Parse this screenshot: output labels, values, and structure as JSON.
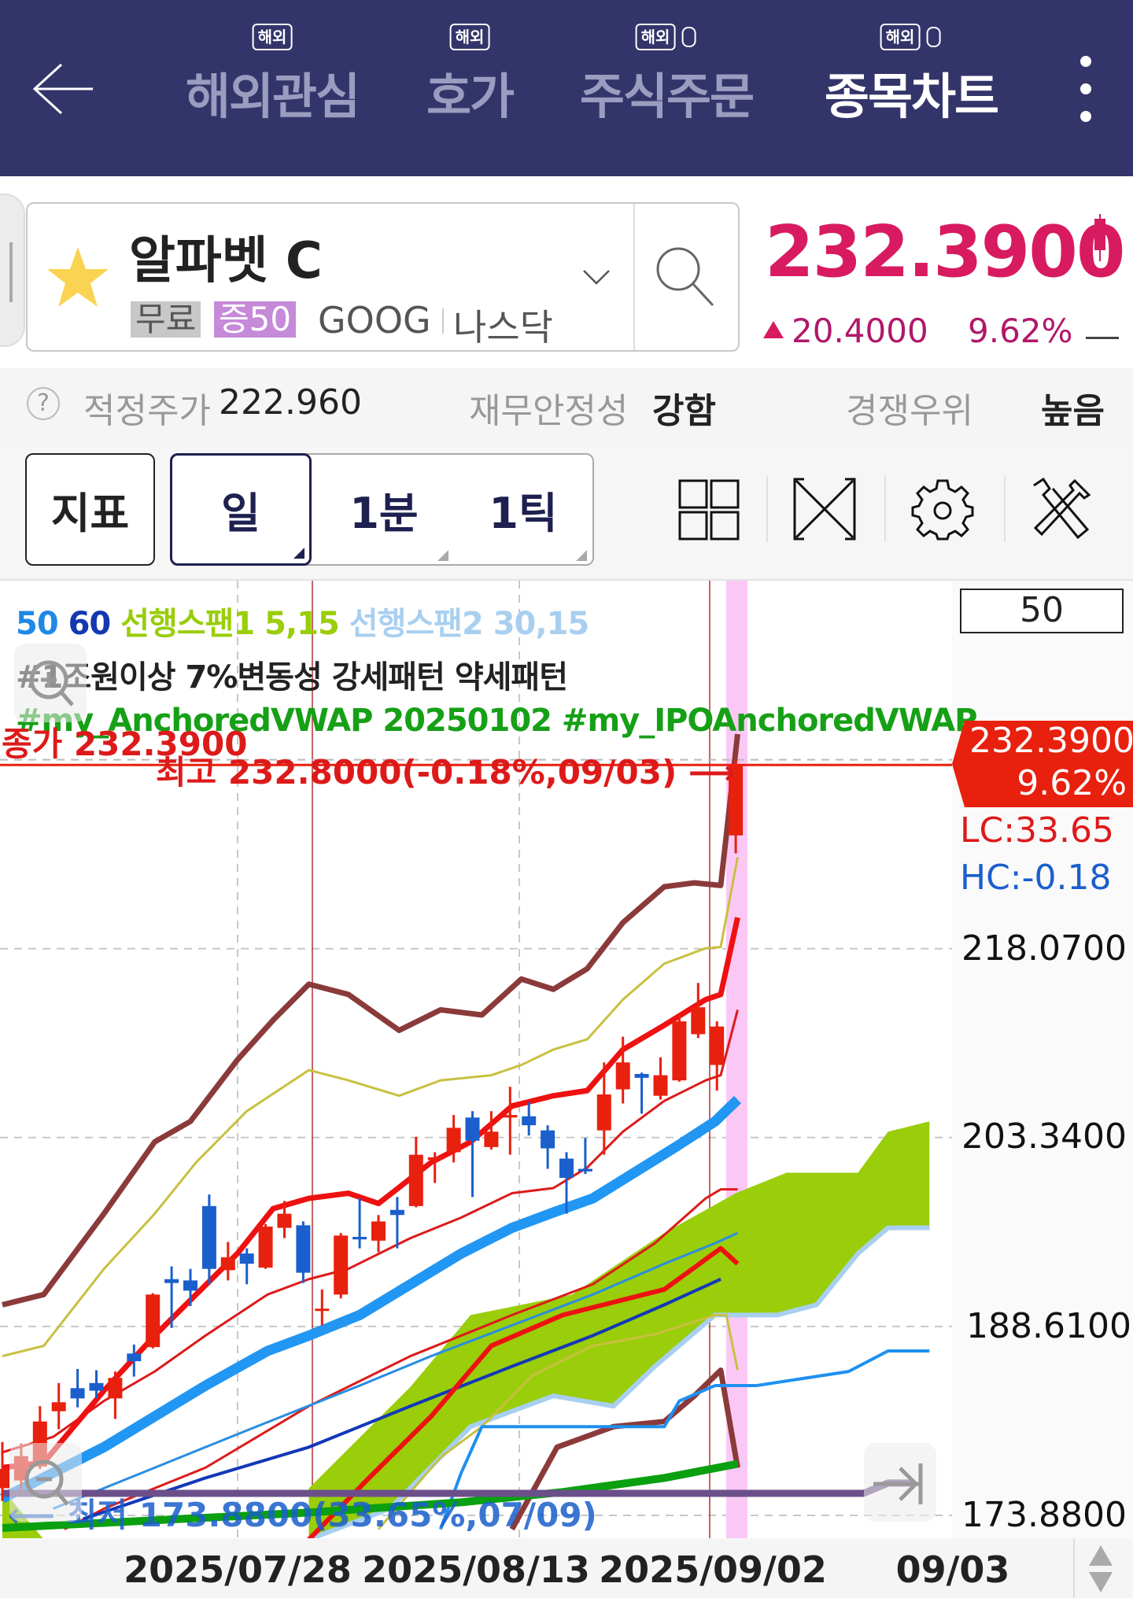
{
  "header": {
    "tabs": [
      {
        "label": "해외관심",
        "badge": "해외",
        "active": false,
        "phone_icon": false
      },
      {
        "label": "호가",
        "badge": "해외",
        "active": false,
        "phone_icon": false
      },
      {
        "label": "주식주문",
        "badge": "해외",
        "active": false,
        "phone_icon": true
      },
      {
        "label": "종목차트",
        "badge": "해외",
        "active": true,
        "phone_icon": true
      }
    ],
    "back_icon": "arrow-left-icon",
    "menu_icon": "more-vertical-icon",
    "bg_color": "#33356a"
  },
  "stock": {
    "name": "알파벳 C",
    "tags": [
      "무료",
      "증50"
    ],
    "ticker": "GOOG",
    "exchange": "나스닥",
    "price": "232.3900",
    "change": "20.4000",
    "change_pct": "9.62%",
    "up_color": "#d81b60"
  },
  "info_row": {
    "fair_price_label": "적정주가",
    "fair_price_value": "222.960",
    "stability_label": "재무안정성",
    "stability_value": "강함",
    "moat_label": "경쟁우위",
    "moat_value": "높음"
  },
  "toolbar": {
    "indicator_label": "지표",
    "periods": [
      "일",
      "1분",
      "1틱"
    ],
    "selected_period": "일",
    "icons": [
      "layout-grid-icon",
      "fullscreen-icon",
      "settings-gear-icon",
      "tools-icon"
    ]
  },
  "chart": {
    "legend_row1": [
      {
        "text": "50",
        "color": "#1e88e5"
      },
      {
        "text": "60",
        "color": "#1438b0"
      },
      {
        "text": "선행스팬1 5,15",
        "color": "#9acd0a"
      },
      {
        "text": "선행스팬2 30,15",
        "color": "#a8cff0"
      }
    ],
    "legend_row2": "#1조원이상 7%변동성 강세패턴 약세패턴",
    "legend_row3": "#my_AnchoredVWAP 20250102 #my_IPOAnchoredVWAP ...",
    "count_box": "50",
    "close_annotation": "종가 232.3900",
    "high_annotation": "최고 232.8000(-0.18%,09/03)",
    "low_annotation": "최저 173.8800(33.65%,07/09)",
    "current_price_label": "232.3900",
    "current_pct_label": "9.62%",
    "lc_label": "LC:33.65",
    "hc_label": "HC:-0.18"
  },
  "chart_data": {
    "type": "candlestick",
    "y_tick_labels": [
      "218.0700",
      "203.3400",
      "188.6100",
      "173.8800"
    ],
    "y_ticks": [
      218.07,
      203.34,
      188.61,
      173.88
    ],
    "x_tick_labels": [
      "2025/07/28",
      "2025/08/13",
      "2025/09/02",
      "09/03"
    ],
    "up_color": "#e8200e",
    "down_color": "#1a5fcc",
    "close": 232.39,
    "high": 232.8,
    "low": 173.88,
    "candles": [
      [
        176.0,
        179.6,
        175.0,
        177.5
      ],
      [
        176.6,
        179.5,
        175.9,
        178.5
      ],
      [
        177.7,
        182.4,
        177.5,
        181.2
      ],
      [
        182.0,
        184.2,
        180.6,
        182.7
      ],
      [
        183.8,
        185.3,
        182.3,
        183.0
      ],
      [
        184.2,
        185.2,
        183.0,
        183.6
      ],
      [
        183.0,
        185.1,
        181.4,
        184.6
      ],
      [
        186.5,
        187.2,
        184.7,
        185.9
      ],
      [
        187.0,
        191.2,
        186.9,
        191.1
      ],
      [
        192.3,
        193.3,
        188.5,
        192.0
      ],
      [
        192.2,
        193.1,
        190.2,
        191.4
      ],
      [
        198.0,
        198.9,
        191.9,
        193.1
      ],
      [
        193.0,
        195.2,
        192.2,
        194.0
      ],
      [
        194.3,
        194.7,
        191.9,
        193.5
      ],
      [
        193.2,
        196.6,
        193.1,
        196.4
      ],
      [
        196.3,
        198.4,
        195.5,
        197.4
      ],
      [
        196.5,
        196.8,
        192.0,
        192.8
      ],
      [
        189.9,
        191.5,
        188.7,
        190.0
      ],
      [
        191.1,
        195.9,
        190.8,
        195.7
      ],
      [
        195.6,
        198.6,
        194.7,
        195.4
      ],
      [
        195.3,
        197.3,
        194.4,
        196.8
      ],
      [
        197.7,
        198.7,
        194.7,
        197.3
      ],
      [
        198.0,
        203.4,
        197.9,
        202.0
      ],
      [
        201.6,
        202.2,
        199.8,
        201.8
      ],
      [
        202.2,
        205.1,
        201.4,
        204.1
      ],
      [
        204.9,
        205.4,
        198.7,
        203.1
      ],
      [
        202.6,
        205.4,
        202.4,
        203.8
      ],
      [
        204.9,
        207.3,
        202.0,
        205.1
      ],
      [
        205.0,
        206.1,
        203.5,
        204.3
      ],
      [
        203.9,
        204.3,
        200.9,
        202.5
      ],
      [
        201.7,
        202.2,
        197.4,
        200.2
      ],
      [
        200.9,
        203.3,
        200.5,
        200.7
      ],
      [
        203.9,
        209.2,
        202.0,
        206.7
      ],
      [
        207.1,
        211.2,
        206.0,
        209.2
      ],
      [
        208.3,
        208.4,
        205.2,
        208.0
      ],
      [
        206.6,
        209.6,
        206.3,
        208.2
      ],
      [
        207.8,
        213.0,
        207.7,
        212.4
      ],
      [
        211.4,
        215.4,
        211.1,
        213.5
      ],
      [
        209.0,
        212.4,
        207.0,
        212.0
      ],
      [
        226.9,
        232.8,
        225.5,
        232.39
      ]
    ],
    "cloud": {
      "color": "#9acd0a",
      "edge_color": "#a8cff0",
      "upper": [
        [
          16.3,
          176
        ],
        [
          21.7,
          183.9
        ],
        [
          24.9,
          189.5
        ],
        [
          30.3,
          191.1
        ],
        [
          35.2,
          195.9
        ],
        [
          39,
          199.0
        ],
        [
          41.7,
          200.6
        ],
        [
          45.5,
          200.6
        ],
        [
          47.1,
          203.8
        ],
        [
          49.3,
          204.6
        ]
      ],
      "lower": [
        [
          16.3,
          172
        ],
        [
          20.6,
          174.4
        ],
        [
          24.9,
          180.8
        ],
        [
          29.3,
          183.2
        ],
        [
          32.5,
          182.4
        ],
        [
          34.7,
          185.5
        ],
        [
          37.9,
          189.5
        ],
        [
          41.2,
          189.5
        ],
        [
          43.3,
          190.3
        ],
        [
          45.5,
          194.3
        ],
        [
          47.1,
          196.3
        ],
        [
          49.3,
          196.3
        ]
      ]
    },
    "overlays": [
      {
        "color": "#8b3a3a",
        "width": 7,
        "points": [
          [
            0,
            190.3
          ],
          [
            2.2,
            191.1
          ],
          [
            5.4,
            197.4
          ],
          [
            8.1,
            203.0
          ],
          [
            10,
            204.6
          ],
          [
            12.5,
            209.4
          ],
          [
            14.4,
            212.5
          ],
          [
            16.3,
            215.3
          ],
          [
            18.4,
            214.5
          ],
          [
            21.1,
            211.7
          ],
          [
            23.3,
            213.3
          ],
          [
            25.5,
            212.9
          ],
          [
            27.6,
            215.7
          ],
          [
            29.3,
            214.9
          ],
          [
            31.1,
            216.5
          ],
          [
            33,
            220.1
          ],
          [
            35.2,
            222.9
          ],
          [
            36.8,
            223.2
          ],
          [
            38.2,
            223.0
          ],
          [
            39.1,
            234.8
          ]
        ]
      },
      {
        "color": "#8b3a3a",
        "width": 7,
        "points": [
          [
            27.1,
            172.8
          ],
          [
            29.5,
            179.2
          ],
          [
            32.5,
            180.8
          ],
          [
            35.2,
            181.2
          ],
          [
            36.8,
            183.2
          ],
          [
            38.2,
            185.2
          ],
          [
            39.1,
            177.6
          ]
        ]
      },
      {
        "color": "#c8c040",
        "width": 3,
        "points": [
          [
            0,
            186.3
          ],
          [
            2.2,
            187.1
          ],
          [
            5.4,
            193.1
          ],
          [
            8.1,
            197.4
          ],
          [
            10.3,
            201.4
          ],
          [
            13,
            205.4
          ],
          [
            16.3,
            208.6
          ],
          [
            18.4,
            207.8
          ],
          [
            21.1,
            206.6
          ],
          [
            23.3,
            207.8
          ],
          [
            26,
            208.2
          ],
          [
            27.6,
            209.0
          ],
          [
            29.3,
            210.2
          ],
          [
            31.1,
            211.0
          ],
          [
            33,
            214.1
          ],
          [
            35.2,
            216.9
          ],
          [
            37.4,
            218.1
          ],
          [
            38.2,
            218.2
          ],
          [
            39.1,
            225.2
          ]
        ]
      },
      {
        "color": "#c8c040",
        "width": 3,
        "points": [
          [
            20,
            172.8
          ],
          [
            23.3,
            178.4
          ],
          [
            25.5,
            180.8
          ],
          [
            28.2,
            184.8
          ],
          [
            31.4,
            187.1
          ],
          [
            34.7,
            188
          ],
          [
            37.9,
            189.5
          ],
          [
            38.5,
            189.5
          ],
          [
            39.1,
            185.2
          ]
        ]
      },
      {
        "color": "#2196f3",
        "width": 13,
        "points": [
          [
            0,
            175.2
          ],
          [
            2.7,
            177.2
          ],
          [
            5.4,
            179.2
          ],
          [
            8.1,
            181.6
          ],
          [
            10.8,
            184
          ],
          [
            14.1,
            186.7
          ],
          [
            16.3,
            187.9
          ],
          [
            19,
            189.5
          ],
          [
            21.7,
            191.9
          ],
          [
            24.4,
            194.3
          ],
          [
            27.1,
            196.3
          ],
          [
            29.3,
            197.5
          ],
          [
            31.4,
            198.6
          ],
          [
            33.6,
            200.6
          ],
          [
            35.8,
            202.6
          ],
          [
            37.9,
            204.6
          ],
          [
            39.1,
            206.3
          ]
        ]
      },
      {
        "color": "#dd1a1a",
        "width": 3,
        "points": [
          [
            3.3,
            172.8
          ],
          [
            5.4,
            174.4
          ],
          [
            10.8,
            177.6
          ],
          [
            16.3,
            182.4
          ],
          [
            21.7,
            186.3
          ],
          [
            27.1,
            189.5
          ],
          [
            31.4,
            191.9
          ],
          [
            34.7,
            195.1
          ],
          [
            37.4,
            198.6
          ],
          [
            38.2,
            199.3
          ],
          [
            39.1,
            199.3
          ]
        ]
      },
      {
        "color": "#2a8de0",
        "width": 3,
        "points": [
          [
            2.7,
            174.4
          ],
          [
            8.1,
            177.6
          ],
          [
            13.5,
            180.8
          ],
          [
            19,
            184
          ],
          [
            22.8,
            186.3
          ],
          [
            27.1,
            188.7
          ],
          [
            31.4,
            191.1
          ],
          [
            35.2,
            193.5
          ],
          [
            37.9,
            195.1
          ],
          [
            39.1,
            195.9
          ]
        ]
      },
      {
        "color": "#1238b8",
        "width": 4,
        "points": [
          [
            4.3,
            173.6
          ],
          [
            10.8,
            176.8
          ],
          [
            16.3,
            179.2
          ],
          [
            21.7,
            182.4
          ],
          [
            27.1,
            185.5
          ],
          [
            31.4,
            187.9
          ],
          [
            35.2,
            190.3
          ],
          [
            38.2,
            192.3
          ]
        ]
      },
      {
        "color": "#ee1111",
        "width": 6,
        "points": [
          [
            16.3,
            172
          ],
          [
            19.5,
            176.8
          ],
          [
            22.8,
            181.6
          ],
          [
            26,
            187.1
          ],
          [
            29.8,
            189.5
          ],
          [
            35.2,
            191.5
          ],
          [
            38.2,
            194.7
          ],
          [
            39.1,
            193.5
          ]
        ]
      },
      {
        "color": "#1e90f0",
        "width": 4,
        "points": [
          [
            23.3,
            172.8
          ],
          [
            24.4,
            177.2
          ],
          [
            25.5,
            180.8
          ],
          [
            35.2,
            180.8
          ],
          [
            36,
            182.8
          ],
          [
            37.9,
            184
          ],
          [
            40.1,
            184
          ],
          [
            45,
            185.1
          ],
          [
            47.1,
            186.7
          ],
          [
            49.3,
            186.7
          ]
        ]
      },
      {
        "color": "#0aa010",
        "width": 10,
        "points": [
          [
            0,
            172.9
          ],
          [
            5.4,
            173.3
          ],
          [
            16.3,
            174.1
          ],
          [
            24.4,
            174.9
          ],
          [
            29.8,
            175.7
          ],
          [
            35.2,
            176.8
          ],
          [
            39.1,
            177.9
          ]
        ]
      },
      {
        "color": "#6b4f8a",
        "width": 9,
        "points": [
          [
            0,
            175.6
          ],
          [
            45.8,
            175.6
          ],
          [
            47.1,
            176.4
          ],
          [
            48.5,
            176.4
          ]
        ]
      },
      {
        "color": "#dd1a1a",
        "width": 3,
        "points": [
          [
            0,
            178.8
          ],
          [
            2.7,
            180
          ],
          [
            5.4,
            182.8
          ],
          [
            8.1,
            185.1
          ],
          [
            10.8,
            187.9
          ],
          [
            14.1,
            191.1
          ],
          [
            16.3,
            192.3
          ],
          [
            18.4,
            193.1
          ],
          [
            21.7,
            195.5
          ],
          [
            24.4,
            197.1
          ],
          [
            27.1,
            199
          ],
          [
            29.3,
            199.4
          ],
          [
            31.1,
            201
          ],
          [
            33,
            203.8
          ],
          [
            35.2,
            206.2
          ],
          [
            37.4,
            207.8
          ],
          [
            38.2,
            208.2
          ],
          [
            39.1,
            213.3
          ]
        ]
      },
      {
        "color": "#ee1111",
        "width": 7,
        "points": [
          [
            0,
            177.6
          ],
          [
            2.2,
            178
          ],
          [
            5.4,
            183.6
          ],
          [
            8.1,
            187.9
          ],
          [
            10.3,
            191.1
          ],
          [
            12.5,
            194.3
          ],
          [
            14.4,
            197.8
          ],
          [
            16.3,
            198.6
          ],
          [
            18.4,
            199
          ],
          [
            20,
            198.2
          ],
          [
            22.8,
            201.4
          ],
          [
            24.9,
            203
          ],
          [
            27.1,
            205.8
          ],
          [
            29.3,
            206.6
          ],
          [
            31.1,
            207
          ],
          [
            33,
            210.2
          ],
          [
            35.2,
            212.1
          ],
          [
            37.4,
            214.1
          ],
          [
            38.2,
            214.5
          ],
          [
            39.1,
            220.5
          ]
        ]
      }
    ]
  }
}
